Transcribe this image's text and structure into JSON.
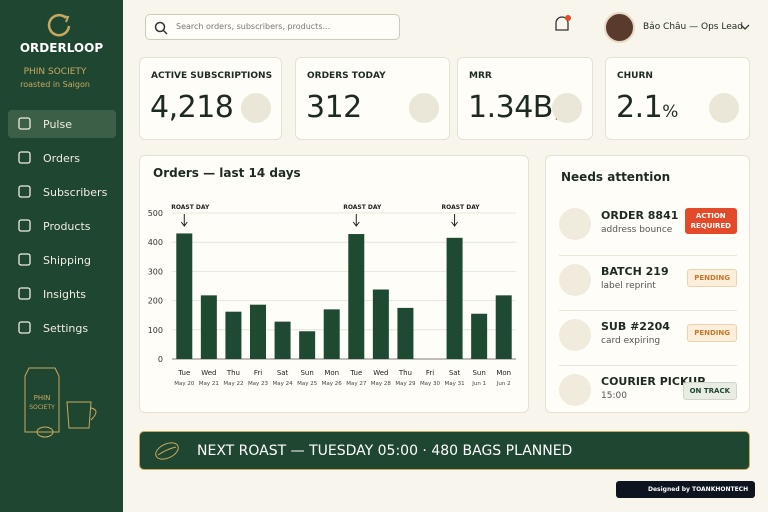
{
  "brand": {
    "name": "ORDERLOOP",
    "subtitle": "PHIN SOCIETY",
    "tagline": "roasted in Saigon",
    "illustration_label": [
      "PHIN",
      "SOCIETY"
    ]
  },
  "nav": [
    {
      "label": "Pulse",
      "active": true
    },
    {
      "label": "Orders"
    },
    {
      "label": "Subscribers"
    },
    {
      "label": "Products"
    },
    {
      "label": "Shipping"
    },
    {
      "label": "Insights"
    },
    {
      "label": "Settings"
    }
  ],
  "search": {
    "placeholder": "Search orders, subscribers, products..."
  },
  "user": {
    "name": "Bảo Châu — Ops Lead"
  },
  "kpis": [
    {
      "label": "ACTIVE SUBSCRIPTIONS",
      "value": "4,218"
    },
    {
      "label": "ORDERS TODAY",
      "value": "312"
    },
    {
      "label": "MRR",
      "value": "1.34B",
      "unit": "₫"
    },
    {
      "label": "CHURN",
      "value": "2.1",
      "unit": "%"
    }
  ],
  "chart_data": {
    "type": "bar",
    "title": "Orders — last 14 days",
    "categories": [
      "Tue",
      "Wed",
      "Thu",
      "Fri",
      "Sat",
      "Sun",
      "Mon",
      "Tue",
      "Wed",
      "Thu",
      "Fri",
      "Sat",
      "Sun",
      "Mon"
    ],
    "dates": [
      "May 20",
      "May 21",
      "May 22",
      "May 23",
      "May 24",
      "May 25",
      "May 26",
      "May 27",
      "May 28",
      "May 29",
      "May 30",
      "May 31",
      "Jun 1",
      "Jun 2"
    ],
    "values": [
      430,
      218,
      162,
      186,
      128,
      95,
      170,
      428,
      238,
      175,
      0,
      415,
      155,
      218
    ],
    "color": "#1f4a32",
    "ylim": [
      0,
      500
    ],
    "yticks": [
      0,
      100,
      200,
      300,
      400,
      500
    ],
    "grid": true,
    "annotations": [
      {
        "text": "ROAST DAY",
        "index": 0
      },
      {
        "text": "ROAST DAY",
        "index": 7
      },
      {
        "text": "ROAST DAY",
        "index": 11
      }
    ]
  },
  "attention": {
    "title": "Needs attention",
    "items": [
      {
        "title": "ORDER 8841",
        "detail": "address bounce",
        "status": [
          "ACTION",
          "REQUIRED"
        ],
        "tone": "alert"
      },
      {
        "title": "BATCH 219",
        "detail": "label reprint",
        "status": [
          "PENDING"
        ],
        "tone": "pending"
      },
      {
        "title": "SUB #2204",
        "detail": "card expiring",
        "status": [
          "PENDING"
        ],
        "tone": "pending"
      },
      {
        "title": "COURIER PICKUP",
        "detail": "15:00",
        "status": [
          "ON TRACK"
        ],
        "tone": "ok"
      }
    ]
  },
  "banner": {
    "text": "NEXT ROAST — TUESDAY 05:00 · 480 BAGS PLANNED"
  },
  "footer": {
    "credit": "Designed by TOANKHONTECH"
  }
}
